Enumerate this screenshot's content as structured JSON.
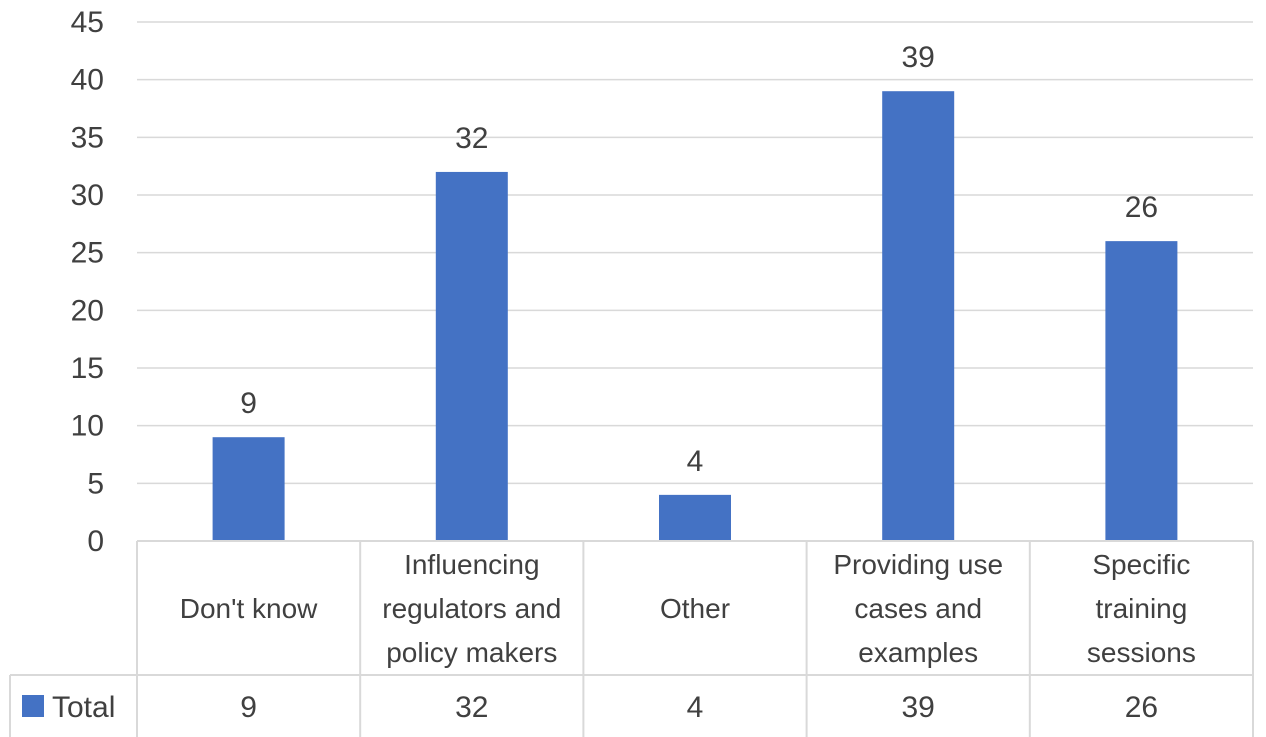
{
  "chart_data": {
    "type": "bar",
    "categories": [
      [
        "Don't know"
      ],
      [
        "Influencing",
        "regulators and",
        "policy makers"
      ],
      [
        "Other"
      ],
      [
        "Providing use",
        "cases and",
        "examples"
      ],
      [
        "Specific",
        "training",
        "sessions"
      ]
    ],
    "series": [
      {
        "name": "Total",
        "values": [
          9,
          32,
          4,
          39,
          26
        ],
        "color": "#4472c4"
      }
    ],
    "ylim": [
      0,
      45
    ],
    "yticks": [
      "0",
      "5",
      "10",
      "15",
      "20",
      "25",
      "30",
      "35",
      "40",
      "45"
    ],
    "ytick_values": [
      0,
      5,
      10,
      15,
      20,
      25,
      30,
      35,
      40,
      45
    ],
    "grid": true,
    "data_labels": true,
    "data_table": true,
    "legend_placement": "data-table"
  }
}
